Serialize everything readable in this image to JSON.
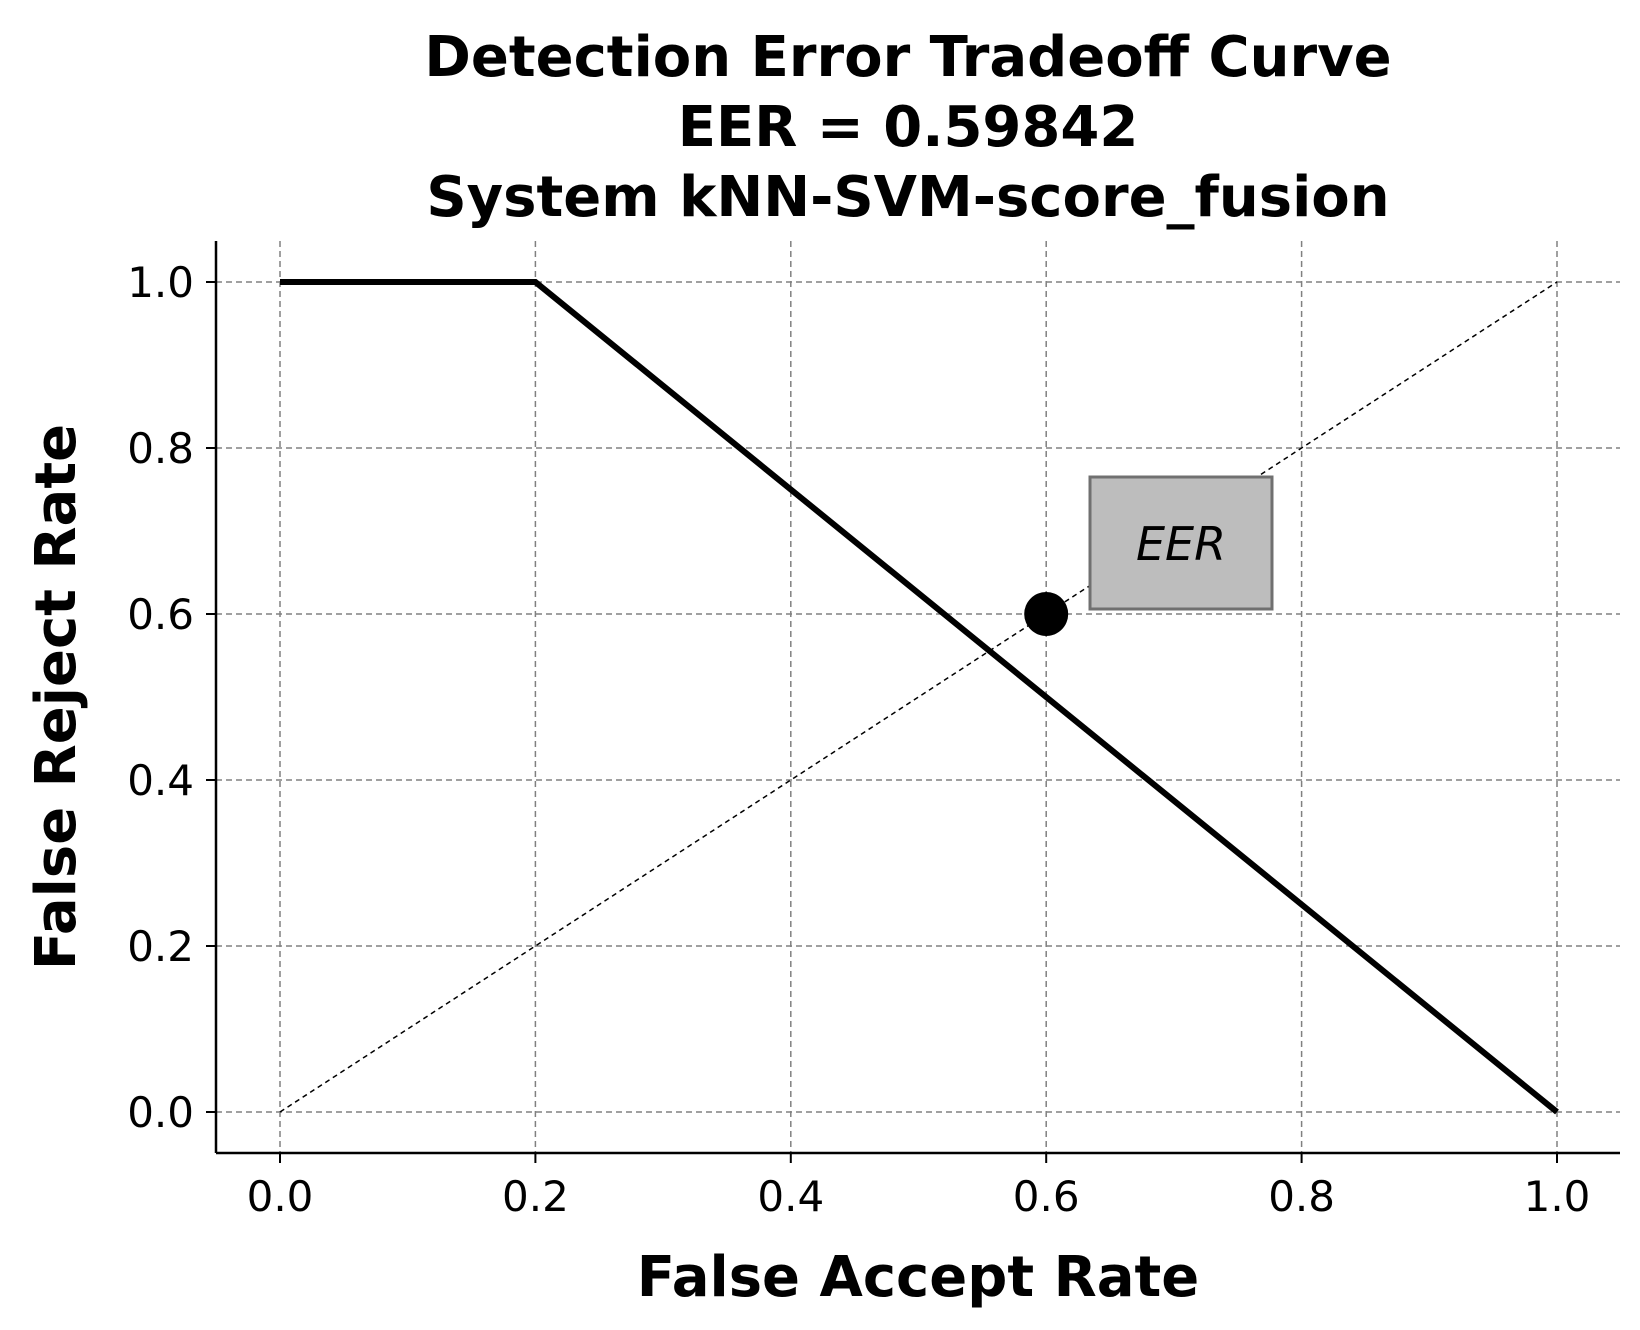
{
  "chart_data": {
    "type": "line",
    "title": [
      "Detection Error Tradeoff Curve",
      "EER = 0.59842",
      "System kNN-SVM-score_fusion"
    ],
    "xlabel": "False Accept Rate",
    "ylabel": "False Reject Rate",
    "xlim": [
      -0.05,
      1.05
    ],
    "ylim": [
      -0.05,
      1.05
    ],
    "x_ticks": [
      "0.0",
      "0.2",
      "0.4",
      "0.6",
      "0.8",
      "1.0"
    ],
    "y_ticks": [
      "0.0",
      "0.2",
      "0.4",
      "0.6",
      "0.8",
      "1.0"
    ],
    "grid": true,
    "series": [
      {
        "x": [
          0.0,
          0.2,
          1.0
        ],
        "y": [
          1.0,
          1.0,
          0.0
        ]
      }
    ],
    "reference_line": {
      "x": [
        0.0,
        1.0
      ],
      "y": [
        0.0,
        1.0
      ]
    },
    "eer_point": {
      "x": 0.6,
      "y": 0.6
    },
    "annotation": {
      "text": "EER"
    },
    "colors": {
      "curve": "#000000",
      "grid": "#808080",
      "annotation_box_fill": "#bdbdbd",
      "annotation_box_edge": "#707070"
    }
  }
}
